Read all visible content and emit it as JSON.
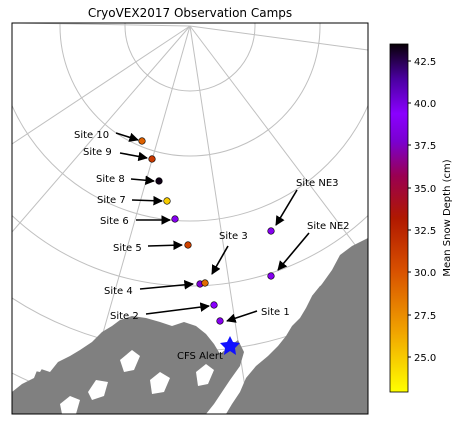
{
  "title": "CryoVEX2017 Observation Camps",
  "colorbar": {
    "label": "Mean Snow Depth (cm)",
    "ticks": [
      "42.5",
      "40.0",
      "37.5",
      "35.0",
      "32.5",
      "30.0",
      "27.5",
      "25.0"
    ],
    "tick_values": [
      42.5,
      40.0,
      37.5,
      35.0,
      32.5,
      30.0,
      27.5,
      25.0
    ],
    "min": 23.0,
    "max": 43.7,
    "colormap": "gnuplot-like (yellow to black)",
    "colors": {
      "top": "#0a0008",
      "purple": "#8a00ff",
      "violet": "#6a00e0",
      "red": "#b01000",
      "orange": "#e06000",
      "yellow": "#ffff00"
    }
  },
  "map": {
    "land_color": "#808080",
    "graticule_color": "#c0c0c0",
    "alert_marker": {
      "label": "CFS Alert",
      "icon": "star",
      "color": "#1010ff"
    }
  },
  "camps": [
    {
      "label": "Site 10",
      "snow_depth_cm": 29.5
    },
    {
      "label": "Site 9",
      "snow_depth_cm": 31.5
    },
    {
      "label": "Site 8",
      "snow_depth_cm": 43.5
    },
    {
      "label": "Site 7",
      "snow_depth_cm": 25.0
    },
    {
      "label": "Site 6",
      "snow_depth_cm": 39.0
    },
    {
      "label": "Site 5",
      "snow_depth_cm": 31.0
    },
    {
      "label": "Site 4",
      "snow_depth_cm": 38.0
    },
    {
      "label": "Site 3",
      "snow_depth_cm": 29.0
    },
    {
      "label": "Site 2",
      "snow_depth_cm": 39.5
    },
    {
      "label": "Site 1",
      "snow_depth_cm": 39.0
    },
    {
      "label": "Site NE3",
      "snow_depth_cm": 39.0
    },
    {
      "label": "Site NE2",
      "snow_depth_cm": 39.0
    }
  ]
}
